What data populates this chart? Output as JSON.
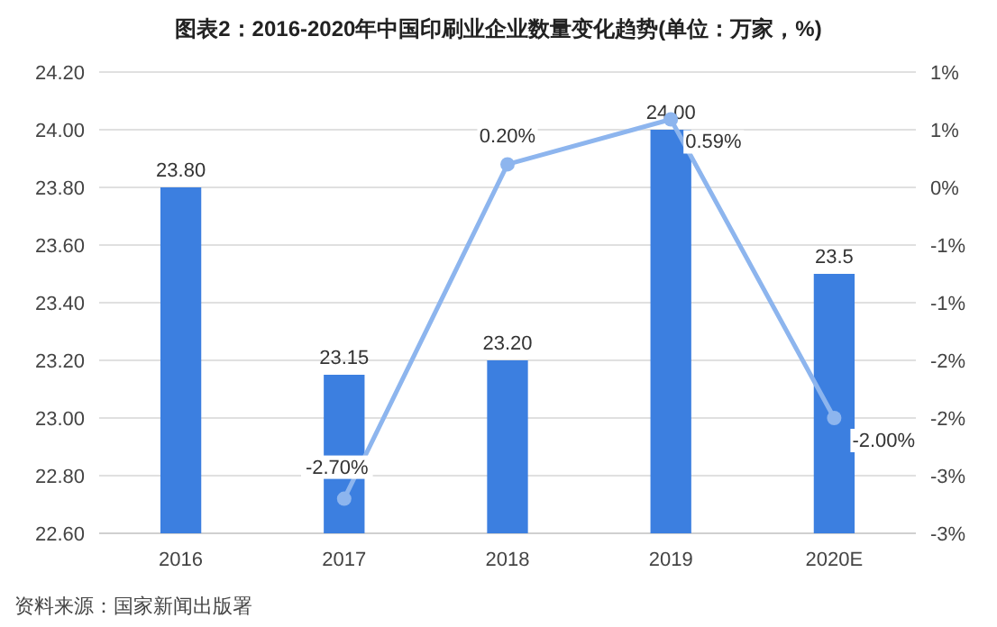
{
  "chart_data": {
    "type": "bar",
    "title": "图表2：2016-2020年中国印刷业企业数量变化趋势(单位：万家，%)",
    "categories": [
      "2016",
      "2017",
      "2018",
      "2019",
      "2020E"
    ],
    "series": [
      {
        "color": "#3c7fe0",
        "values": [
          23.8,
          23.15,
          23.2,
          24.0,
          23.5
        ],
        "value_labels": [
          "23.80",
          "23.15",
          "23.20",
          "24.00",
          "23.5"
        ]
      },
      {
        "type": "line",
        "axis": "y2",
        "color": "#8db5ee",
        "marker": "circle",
        "values": [
          null,
          -2.7,
          0.2,
          0.59,
          -2.0
        ],
        "value_labels": [
          null,
          "-2.70%",
          "0.20%",
          "0.59%",
          "-2.00%"
        ]
      }
    ],
    "ylim": [
      22.6,
      24.2
    ],
    "yticks": [
      {
        "value": 22.6,
        "label": "22.60"
      },
      {
        "value": 22.8,
        "label": "22.80"
      },
      {
        "value": 23.0,
        "label": "23.00"
      },
      {
        "value": 23.2,
        "label": "23.20"
      },
      {
        "value": 23.4,
        "label": "23.40"
      },
      {
        "value": 23.6,
        "label": "23.60"
      },
      {
        "value": 23.8,
        "label": "23.80"
      },
      {
        "value": 24.0,
        "label": "24.00"
      },
      {
        "value": 24.2,
        "label": "24.20"
      }
    ],
    "y2lim": [
      -3,
      1
    ],
    "y2ticks": [
      {
        "value": -3,
        "label": "-3%"
      },
      {
        "value": -2.5,
        "label": "-3%"
      },
      {
        "value": -2,
        "label": "-2%"
      },
      {
        "value": -1.5,
        "label": "-2%"
      },
      {
        "value": -1,
        "label": "-1%"
      },
      {
        "value": -0.5,
        "label": "-1%"
      },
      {
        "value": 0,
        "label": "0%"
      },
      {
        "value": 0.5,
        "label": "1%"
      },
      {
        "value": 1,
        "label": "1%"
      }
    ],
    "grid": "y",
    "annotations": [
      "资料来源：国家新闻出版署"
    ]
  }
}
